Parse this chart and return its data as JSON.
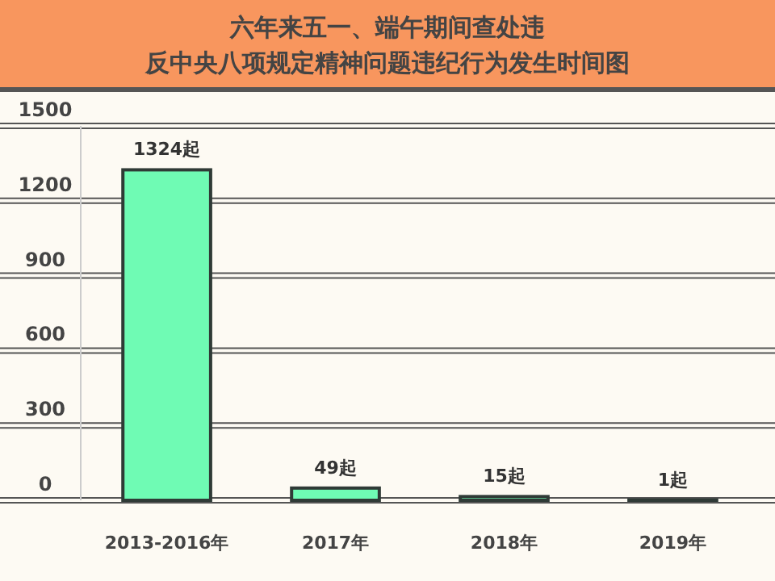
{
  "chart_data": {
    "type": "bar",
    "title": "六年来五一、端午期间查处违反中央八项规定精神问题违纪行为发生时间图",
    "categories": [
      "2013-2016年",
      "2017年",
      "2018年",
      "2019年"
    ],
    "values": [
      1324,
      49,
      15,
      1
    ],
    "color": "#6ffbb4",
    "value_labels": [
      "1324起",
      "49起",
      "15起",
      "1起"
    ],
    "ylim": [
      0,
      1500
    ],
    "yticks": [
      0,
      300,
      600,
      900,
      1200,
      1500
    ],
    "grid": "y"
  }
}
